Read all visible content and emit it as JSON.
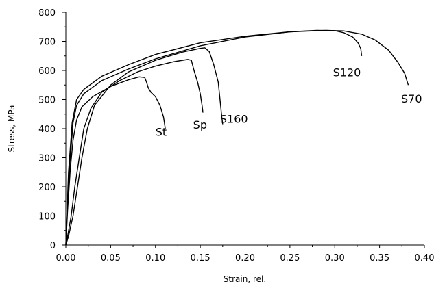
{
  "chart_data": {
    "type": "line",
    "xlabel": "Strain, rel.",
    "ylabel": "Stress,  MPa",
    "xlim": [
      0,
      0.4
    ],
    "ylim": [
      0,
      800
    ],
    "x_ticks": [
      "0.00",
      "0.05",
      "0.10",
      "0.15",
      "0.20",
      "0.25",
      "0.30",
      "0.35",
      "0.40"
    ],
    "y_ticks": [
      "0",
      "100",
      "200",
      "300",
      "400",
      "500",
      "600",
      "700",
      "800"
    ],
    "grid": false,
    "series": [
      {
        "name": "St",
        "points": [
          [
            0,
            0
          ],
          [
            0.002,
            120
          ],
          [
            0.005,
            260
          ],
          [
            0.008,
            360
          ],
          [
            0.012,
            430
          ],
          [
            0.018,
            475
          ],
          [
            0.03,
            510
          ],
          [
            0.05,
            545
          ],
          [
            0.07,
            568
          ],
          [
            0.082,
            578
          ],
          [
            0.088,
            576
          ],
          [
            0.09,
            560
          ],
          [
            0.092,
            540
          ],
          [
            0.095,
            525
          ],
          [
            0.1,
            510
          ],
          [
            0.105,
            480
          ],
          [
            0.109,
            440
          ],
          [
            0.111,
            400
          ]
        ]
      },
      {
        "name": "Sp",
        "points": [
          [
            0,
            0
          ],
          [
            0.002,
            30
          ],
          [
            0.006,
            100
          ],
          [
            0.01,
            200
          ],
          [
            0.015,
            300
          ],
          [
            0.02,
            400
          ],
          [
            0.028,
            470
          ],
          [
            0.04,
            525
          ],
          [
            0.06,
            565
          ],
          [
            0.08,
            595
          ],
          [
            0.1,
            615
          ],
          [
            0.12,
            630
          ],
          [
            0.136,
            638
          ],
          [
            0.14,
            635
          ],
          [
            0.143,
            600
          ],
          [
            0.147,
            560
          ],
          [
            0.15,
            520
          ],
          [
            0.152,
            480
          ],
          [
            0.153,
            455
          ]
        ]
      },
      {
        "name": "S160",
        "points": [
          [
            0,
            0
          ],
          [
            0.003,
            30
          ],
          [
            0.008,
            100
          ],
          [
            0.013,
            200
          ],
          [
            0.018,
            300
          ],
          [
            0.024,
            400
          ],
          [
            0.032,
            480
          ],
          [
            0.05,
            550
          ],
          [
            0.07,
            595
          ],
          [
            0.1,
            635
          ],
          [
            0.13,
            663
          ],
          [
            0.15,
            676
          ],
          [
            0.155,
            678
          ],
          [
            0.16,
            665
          ],
          [
            0.165,
            620
          ],
          [
            0.17,
            560
          ],
          [
            0.172,
            500
          ],
          [
            0.174,
            440
          ],
          [
            0.175,
            415
          ]
        ]
      },
      {
        "name": "S120",
        "points": [
          [
            0,
            0
          ],
          [
            0.002,
            150
          ],
          [
            0.005,
            300
          ],
          [
            0.008,
            420
          ],
          [
            0.012,
            480
          ],
          [
            0.02,
            520
          ],
          [
            0.04,
            565
          ],
          [
            0.07,
            605
          ],
          [
            0.1,
            640
          ],
          [
            0.15,
            685
          ],
          [
            0.2,
            715
          ],
          [
            0.25,
            733
          ],
          [
            0.28,
            738
          ],
          [
            0.3,
            737
          ],
          [
            0.31,
            730
          ],
          [
            0.32,
            715
          ],
          [
            0.326,
            695
          ],
          [
            0.329,
            675
          ],
          [
            0.33,
            650
          ]
        ]
      },
      {
        "name": "S70",
        "points": [
          [
            0,
            0
          ],
          [
            0.003,
            250
          ],
          [
            0.007,
            420
          ],
          [
            0.012,
            500
          ],
          [
            0.02,
            535
          ],
          [
            0.04,
            580
          ],
          [
            0.07,
            620
          ],
          [
            0.1,
            655
          ],
          [
            0.15,
            695
          ],
          [
            0.2,
            718
          ],
          [
            0.25,
            733
          ],
          [
            0.29,
            738
          ],
          [
            0.31,
            736
          ],
          [
            0.33,
            725
          ],
          [
            0.345,
            705
          ],
          [
            0.36,
            670
          ],
          [
            0.37,
            630
          ],
          [
            0.378,
            590
          ],
          [
            0.382,
            550
          ]
        ]
      }
    ],
    "annotations": [
      {
        "text": "St",
        "x": 0.1,
        "y": 375
      },
      {
        "text": "Sp",
        "x": 0.142,
        "y": 400
      },
      {
        "text": "S160",
        "x": 0.172,
        "y": 420
      },
      {
        "text": "S120",
        "x": 0.298,
        "y": 580
      },
      {
        "text": "S70",
        "x": 0.374,
        "y": 490
      }
    ]
  }
}
